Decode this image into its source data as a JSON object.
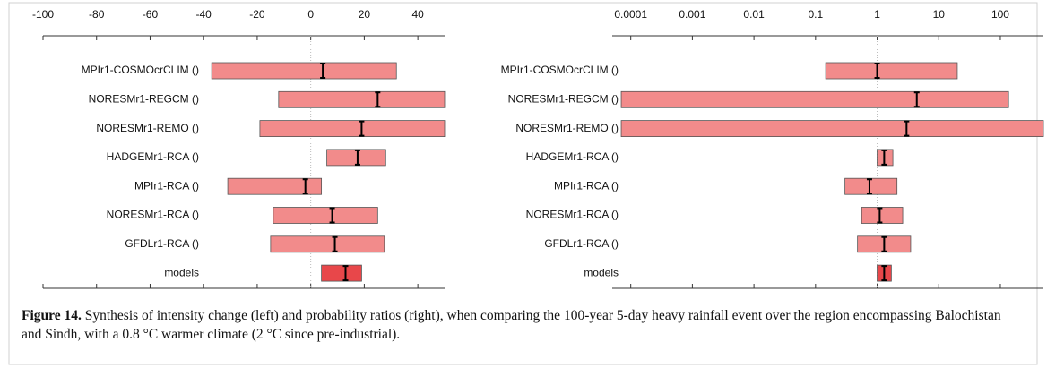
{
  "chart_data": [
    {
      "type": "interval",
      "categories": [
        "MPIr1-COSMOcrCLIM ()",
        "NORESMr1-REGCM ()",
        "NORESMr1-REMO ()",
        "HADGEMr1-RCA ()",
        "MPIr1-RCA ()",
        "NORESMr1-RCA ()",
        "GFDLr1-RCA ()",
        "models"
      ],
      "low": [
        -37,
        -12,
        -19,
        6,
        -31,
        -14,
        -15,
        4
      ],
      "high": [
        32,
        50,
        50,
        28,
        4,
        25,
        27.5,
        19
      ],
      "best": [
        4.5,
        25,
        19,
        17.5,
        -2,
        8,
        9,
        13
      ],
      "colors": [
        "#f28b8b",
        "#f28b8b",
        "#f28b8b",
        "#f28b8b",
        "#f28b8b",
        "#f28b8b",
        "#f28b8b",
        "#e8474a"
      ],
      "xlim": [
        -100,
        50
      ],
      "xticks": [
        -100,
        -80,
        -60,
        -40,
        -20,
        0,
        20,
        40
      ],
      "log_x": false,
      "reference_line": 0
    },
    {
      "type": "interval",
      "categories": [
        "MPIr1-COSMOcrCLIM ()",
        "NORESMr1-REGCM ()",
        "NORESMr1-REMO ()",
        "HADGEMr1-RCA ()",
        "MPIr1-RCA ()",
        "NORESMr1-RCA ()",
        "GFDLr1-RCA ()",
        "models"
      ],
      "low": [
        0.146,
        7e-05,
        7e-05,
        1.0,
        0.3,
        0.56,
        0.48,
        1.0
      ],
      "high": [
        20,
        136,
        500,
        1.8,
        2.1,
        2.6,
        3.5,
        1.7
      ],
      "best": [
        1.0,
        4.4,
        3.0,
        1.3,
        0.75,
        1.1,
        1.3,
        1.3
      ],
      "colors": [
        "#f28b8b",
        "#f28b8b",
        "#f28b8b",
        "#f28b8b",
        "#f28b8b",
        "#f28b8b",
        "#f28b8b",
        "#e8474a"
      ],
      "xlim": [
        5e-05,
        500
      ],
      "xticks": [
        0.0001,
        0.001,
        0.01,
        0.1,
        1,
        10,
        100
      ],
      "log_x": true,
      "reference_line": 1
    }
  ],
  "caption": {
    "label": "Figure 14.",
    "text": "Synthesis of intensity change (left) and probability ratios (right), when comparing the 100-year 5-day heavy rainfall event over the region encompassing Balochistan and Sindh, with a 0.8 °C warmer climate (2 °C since pre-industrial)."
  }
}
